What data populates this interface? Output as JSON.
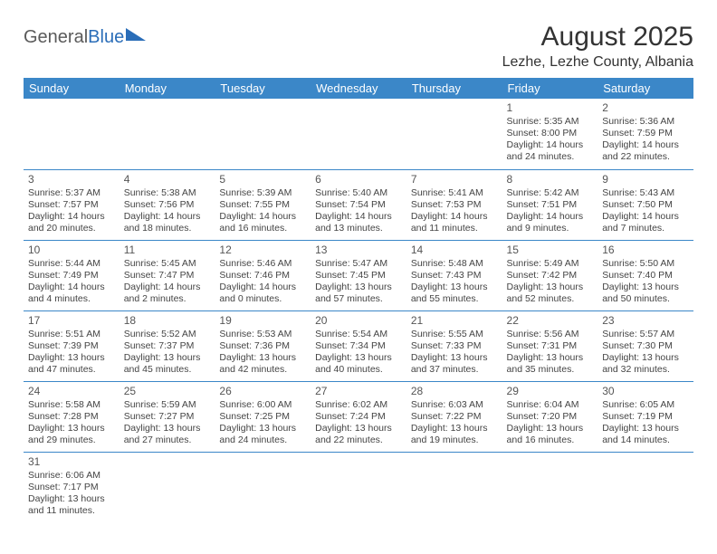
{
  "logo": {
    "part1": "General",
    "part2": "Blue"
  },
  "title": "August 2025",
  "location": "Lezhe, Lezhe County, Albania",
  "colors": {
    "header_bg": "#3b87c8",
    "header_text": "#ffffff",
    "border": "#3b87c8",
    "logo_gray": "#5a5a5a",
    "logo_blue": "#2a6db8",
    "body_text": "#444"
  },
  "weekdays": [
    "Sunday",
    "Monday",
    "Tuesday",
    "Wednesday",
    "Thursday",
    "Friday",
    "Saturday"
  ],
  "weeks": [
    [
      {
        "day": "",
        "sunrise": "",
        "sunset": "",
        "daylight": ""
      },
      {
        "day": "",
        "sunrise": "",
        "sunset": "",
        "daylight": ""
      },
      {
        "day": "",
        "sunrise": "",
        "sunset": "",
        "daylight": ""
      },
      {
        "day": "",
        "sunrise": "",
        "sunset": "",
        "daylight": ""
      },
      {
        "day": "",
        "sunrise": "",
        "sunset": "",
        "daylight": ""
      },
      {
        "day": "1",
        "sunrise": "Sunrise: 5:35 AM",
        "sunset": "Sunset: 8:00 PM",
        "daylight": "Daylight: 14 hours and 24 minutes."
      },
      {
        "day": "2",
        "sunrise": "Sunrise: 5:36 AM",
        "sunset": "Sunset: 7:59 PM",
        "daylight": "Daylight: 14 hours and 22 minutes."
      }
    ],
    [
      {
        "day": "3",
        "sunrise": "Sunrise: 5:37 AM",
        "sunset": "Sunset: 7:57 PM",
        "daylight": "Daylight: 14 hours and 20 minutes."
      },
      {
        "day": "4",
        "sunrise": "Sunrise: 5:38 AM",
        "sunset": "Sunset: 7:56 PM",
        "daylight": "Daylight: 14 hours and 18 minutes."
      },
      {
        "day": "5",
        "sunrise": "Sunrise: 5:39 AM",
        "sunset": "Sunset: 7:55 PM",
        "daylight": "Daylight: 14 hours and 16 minutes."
      },
      {
        "day": "6",
        "sunrise": "Sunrise: 5:40 AM",
        "sunset": "Sunset: 7:54 PM",
        "daylight": "Daylight: 14 hours and 13 minutes."
      },
      {
        "day": "7",
        "sunrise": "Sunrise: 5:41 AM",
        "sunset": "Sunset: 7:53 PM",
        "daylight": "Daylight: 14 hours and 11 minutes."
      },
      {
        "day": "8",
        "sunrise": "Sunrise: 5:42 AM",
        "sunset": "Sunset: 7:51 PM",
        "daylight": "Daylight: 14 hours and 9 minutes."
      },
      {
        "day": "9",
        "sunrise": "Sunrise: 5:43 AM",
        "sunset": "Sunset: 7:50 PM",
        "daylight": "Daylight: 14 hours and 7 minutes."
      }
    ],
    [
      {
        "day": "10",
        "sunrise": "Sunrise: 5:44 AM",
        "sunset": "Sunset: 7:49 PM",
        "daylight": "Daylight: 14 hours and 4 minutes."
      },
      {
        "day": "11",
        "sunrise": "Sunrise: 5:45 AM",
        "sunset": "Sunset: 7:47 PM",
        "daylight": "Daylight: 14 hours and 2 minutes."
      },
      {
        "day": "12",
        "sunrise": "Sunrise: 5:46 AM",
        "sunset": "Sunset: 7:46 PM",
        "daylight": "Daylight: 14 hours and 0 minutes."
      },
      {
        "day": "13",
        "sunrise": "Sunrise: 5:47 AM",
        "sunset": "Sunset: 7:45 PM",
        "daylight": "Daylight: 13 hours and 57 minutes."
      },
      {
        "day": "14",
        "sunrise": "Sunrise: 5:48 AM",
        "sunset": "Sunset: 7:43 PM",
        "daylight": "Daylight: 13 hours and 55 minutes."
      },
      {
        "day": "15",
        "sunrise": "Sunrise: 5:49 AM",
        "sunset": "Sunset: 7:42 PM",
        "daylight": "Daylight: 13 hours and 52 minutes."
      },
      {
        "day": "16",
        "sunrise": "Sunrise: 5:50 AM",
        "sunset": "Sunset: 7:40 PM",
        "daylight": "Daylight: 13 hours and 50 minutes."
      }
    ],
    [
      {
        "day": "17",
        "sunrise": "Sunrise: 5:51 AM",
        "sunset": "Sunset: 7:39 PM",
        "daylight": "Daylight: 13 hours and 47 minutes."
      },
      {
        "day": "18",
        "sunrise": "Sunrise: 5:52 AM",
        "sunset": "Sunset: 7:37 PM",
        "daylight": "Daylight: 13 hours and 45 minutes."
      },
      {
        "day": "19",
        "sunrise": "Sunrise: 5:53 AM",
        "sunset": "Sunset: 7:36 PM",
        "daylight": "Daylight: 13 hours and 42 minutes."
      },
      {
        "day": "20",
        "sunrise": "Sunrise: 5:54 AM",
        "sunset": "Sunset: 7:34 PM",
        "daylight": "Daylight: 13 hours and 40 minutes."
      },
      {
        "day": "21",
        "sunrise": "Sunrise: 5:55 AM",
        "sunset": "Sunset: 7:33 PM",
        "daylight": "Daylight: 13 hours and 37 minutes."
      },
      {
        "day": "22",
        "sunrise": "Sunrise: 5:56 AM",
        "sunset": "Sunset: 7:31 PM",
        "daylight": "Daylight: 13 hours and 35 minutes."
      },
      {
        "day": "23",
        "sunrise": "Sunrise: 5:57 AM",
        "sunset": "Sunset: 7:30 PM",
        "daylight": "Daylight: 13 hours and 32 minutes."
      }
    ],
    [
      {
        "day": "24",
        "sunrise": "Sunrise: 5:58 AM",
        "sunset": "Sunset: 7:28 PM",
        "daylight": "Daylight: 13 hours and 29 minutes."
      },
      {
        "day": "25",
        "sunrise": "Sunrise: 5:59 AM",
        "sunset": "Sunset: 7:27 PM",
        "daylight": "Daylight: 13 hours and 27 minutes."
      },
      {
        "day": "26",
        "sunrise": "Sunrise: 6:00 AM",
        "sunset": "Sunset: 7:25 PM",
        "daylight": "Daylight: 13 hours and 24 minutes."
      },
      {
        "day": "27",
        "sunrise": "Sunrise: 6:02 AM",
        "sunset": "Sunset: 7:24 PM",
        "daylight": "Daylight: 13 hours and 22 minutes."
      },
      {
        "day": "28",
        "sunrise": "Sunrise: 6:03 AM",
        "sunset": "Sunset: 7:22 PM",
        "daylight": "Daylight: 13 hours and 19 minutes."
      },
      {
        "day": "29",
        "sunrise": "Sunrise: 6:04 AM",
        "sunset": "Sunset: 7:20 PM",
        "daylight": "Daylight: 13 hours and 16 minutes."
      },
      {
        "day": "30",
        "sunrise": "Sunrise: 6:05 AM",
        "sunset": "Sunset: 7:19 PM",
        "daylight": "Daylight: 13 hours and 14 minutes."
      }
    ],
    [
      {
        "day": "31",
        "sunrise": "Sunrise: 6:06 AM",
        "sunset": "Sunset: 7:17 PM",
        "daylight": "Daylight: 13 hours and 11 minutes."
      },
      {
        "day": "",
        "sunrise": "",
        "sunset": "",
        "daylight": ""
      },
      {
        "day": "",
        "sunrise": "",
        "sunset": "",
        "daylight": ""
      },
      {
        "day": "",
        "sunrise": "",
        "sunset": "",
        "daylight": ""
      },
      {
        "day": "",
        "sunrise": "",
        "sunset": "",
        "daylight": ""
      },
      {
        "day": "",
        "sunrise": "",
        "sunset": "",
        "daylight": ""
      },
      {
        "day": "",
        "sunrise": "",
        "sunset": "",
        "daylight": ""
      }
    ]
  ]
}
